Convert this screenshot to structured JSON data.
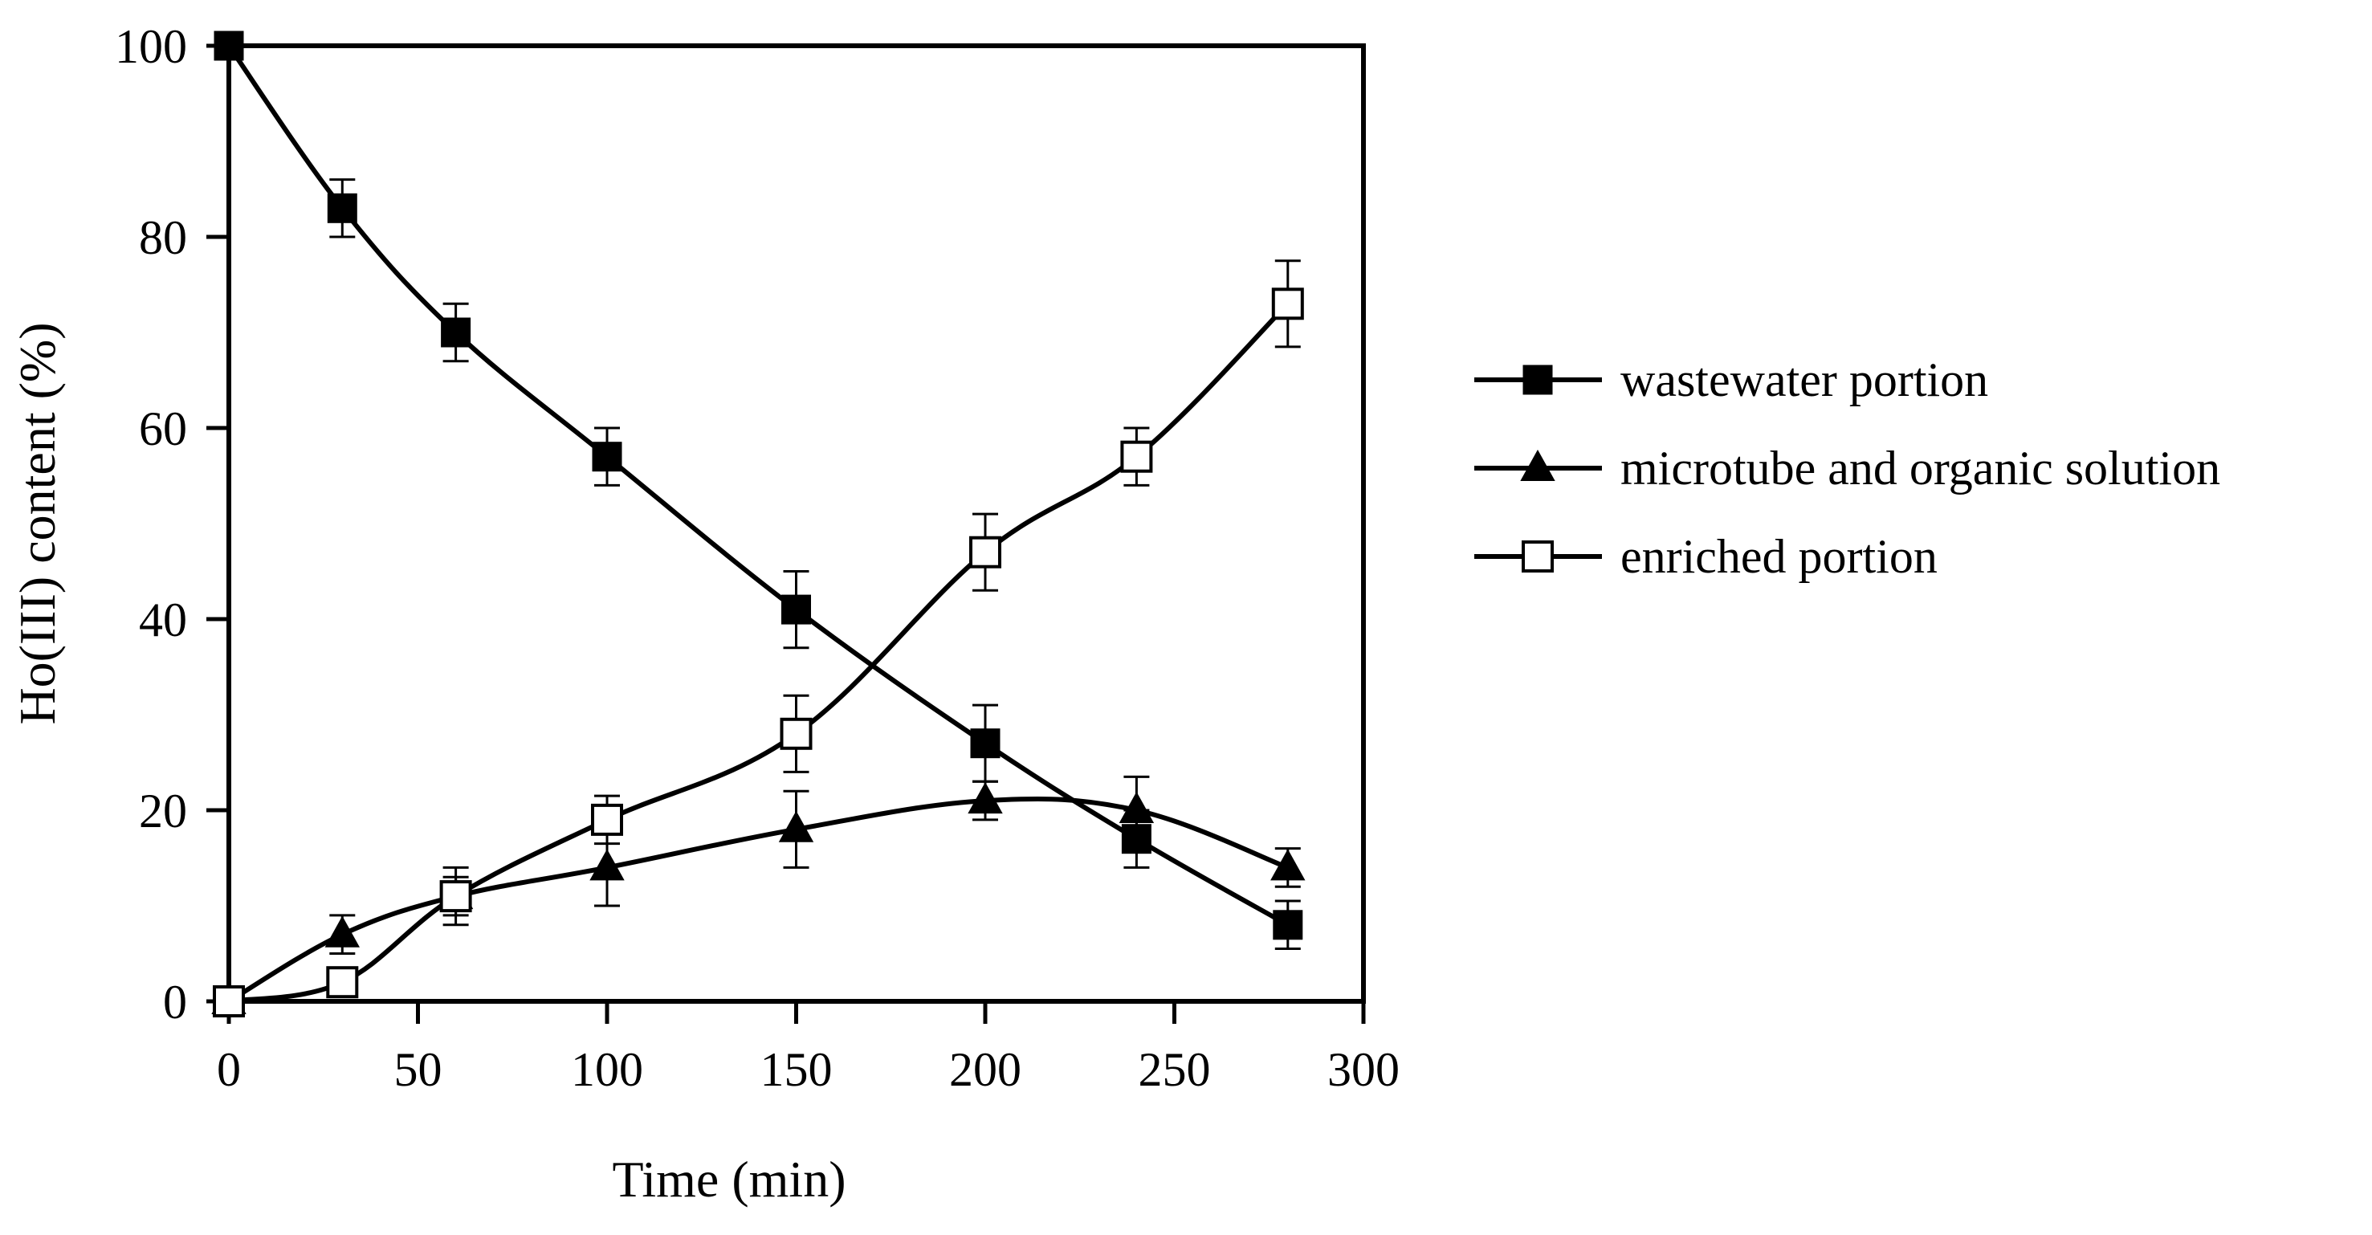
{
  "chart_data": {
    "type": "line",
    "title": "",
    "xlabel": "Time (min)",
    "ylabel": "Ho(III) content (%)",
    "xlim": [
      0,
      300
    ],
    "ylim": [
      0,
      100
    ],
    "xticks": [
      0,
      50,
      100,
      150,
      200,
      250,
      300
    ],
    "yticks": [
      0,
      20,
      40,
      60,
      80,
      100
    ],
    "grid": false,
    "legend_position": "right",
    "x": [
      0,
      30,
      60,
      100,
      150,
      200,
      240,
      280
    ],
    "series": [
      {
        "name": "wastewater portion",
        "marker": "filled-square",
        "values": [
          100,
          83,
          70,
          57,
          41,
          27,
          17,
          8
        ],
        "errors": [
          0,
          3,
          3,
          3,
          4,
          4,
          3,
          2.5
        ]
      },
      {
        "name": "microtube and organic solution",
        "marker": "filled-triangle",
        "values": [
          0,
          7,
          11,
          14,
          18,
          21,
          20,
          14
        ],
        "errors": [
          0,
          2,
          3,
          4,
          4,
          2,
          3.5,
          2
        ]
      },
      {
        "name": "enriched portion",
        "marker": "open-square",
        "values": [
          0,
          2,
          11,
          19,
          28,
          47,
          57,
          73
        ],
        "errors": [
          0,
          0.5,
          2,
          2.5,
          4,
          4,
          3,
          4.5
        ]
      }
    ]
  }
}
